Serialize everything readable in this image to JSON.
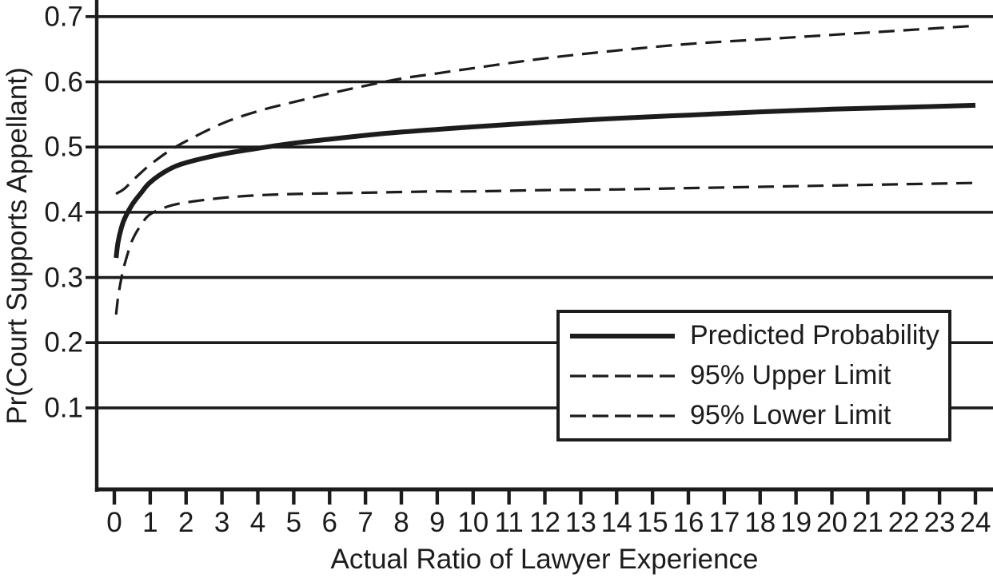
{
  "figure": {
    "background": "#ffffff",
    "ink_color": "#1c1c1c"
  },
  "chart_data": {
    "type": "line",
    "title": "",
    "xlabel": "Actual Ratio of Lawyer Experience",
    "ylabel": "Pr(Court Supports Appellant)",
    "xlim": [
      -0.5,
      24.5
    ],
    "ylim": [
      -0.025,
      0.7255
    ],
    "grid": "horizontal",
    "legend_position": "lower right",
    "x_tick_labels": [
      "0",
      "1",
      "2",
      "3",
      "4",
      "5",
      "6",
      "7",
      "8",
      "9",
      "10",
      "11",
      "12",
      "13",
      "14",
      "15",
      "16",
      "17",
      "18",
      "19",
      "20",
      "21",
      "22",
      "23",
      "24"
    ],
    "x_tick_values": [
      0,
      1,
      2,
      3,
      4,
      5,
      6,
      7,
      8,
      9,
      10,
      11,
      12,
      13,
      14,
      15,
      16,
      17,
      18,
      19,
      20,
      21,
      22,
      23,
      24
    ],
    "y_tick_labels": [
      "0.7",
      "0.6",
      "0.5",
      "0.4",
      "0.3",
      "0.2",
      "0.1"
    ],
    "y_tick_values": [
      0.7,
      0.6,
      0.5,
      0.4,
      0.3,
      0.2,
      0.1
    ],
    "x": [
      0.05,
      0.1,
      0.2,
      0.3,
      0.5,
      0.75,
      1,
      1.5,
      2,
      3,
      4,
      5,
      6,
      7,
      8,
      9,
      10,
      12,
      14,
      16,
      18,
      20,
      22,
      24
    ],
    "series": [
      {
        "name": "Predicted Probability",
        "style": "solid",
        "stroke_width": 6,
        "values": [
          0.33,
          0.353,
          0.377,
          0.392,
          0.412,
          0.43,
          0.446,
          0.465,
          0.476,
          0.489,
          0.498,
          0.506,
          0.512,
          0.518,
          0.523,
          0.527,
          0.531,
          0.538,
          0.544,
          0.549,
          0.554,
          0.558,
          0.561,
          0.564
        ]
      },
      {
        "name": "95% Upper Limit",
        "style": "dashed",
        "stroke_width": 3.2,
        "values": [
          0.428,
          0.43,
          0.433,
          0.437,
          0.448,
          0.461,
          0.473,
          0.493,
          0.509,
          0.536,
          0.555,
          0.569,
          0.582,
          0.594,
          0.605,
          0.613,
          0.621,
          0.636,
          0.648,
          0.658,
          0.665,
          0.672,
          0.679,
          0.686
        ]
      },
      {
        "name": "95% Lower Limit",
        "style": "dashed",
        "stroke_width": 3.2,
        "values": [
          0.243,
          0.268,
          0.3,
          0.323,
          0.357,
          0.381,
          0.397,
          0.409,
          0.415,
          0.422,
          0.426,
          0.428,
          0.429,
          0.43,
          0.431,
          0.432,
          0.432,
          0.434,
          0.435,
          0.437,
          0.439,
          0.441,
          0.443,
          0.445
        ]
      }
    ]
  }
}
